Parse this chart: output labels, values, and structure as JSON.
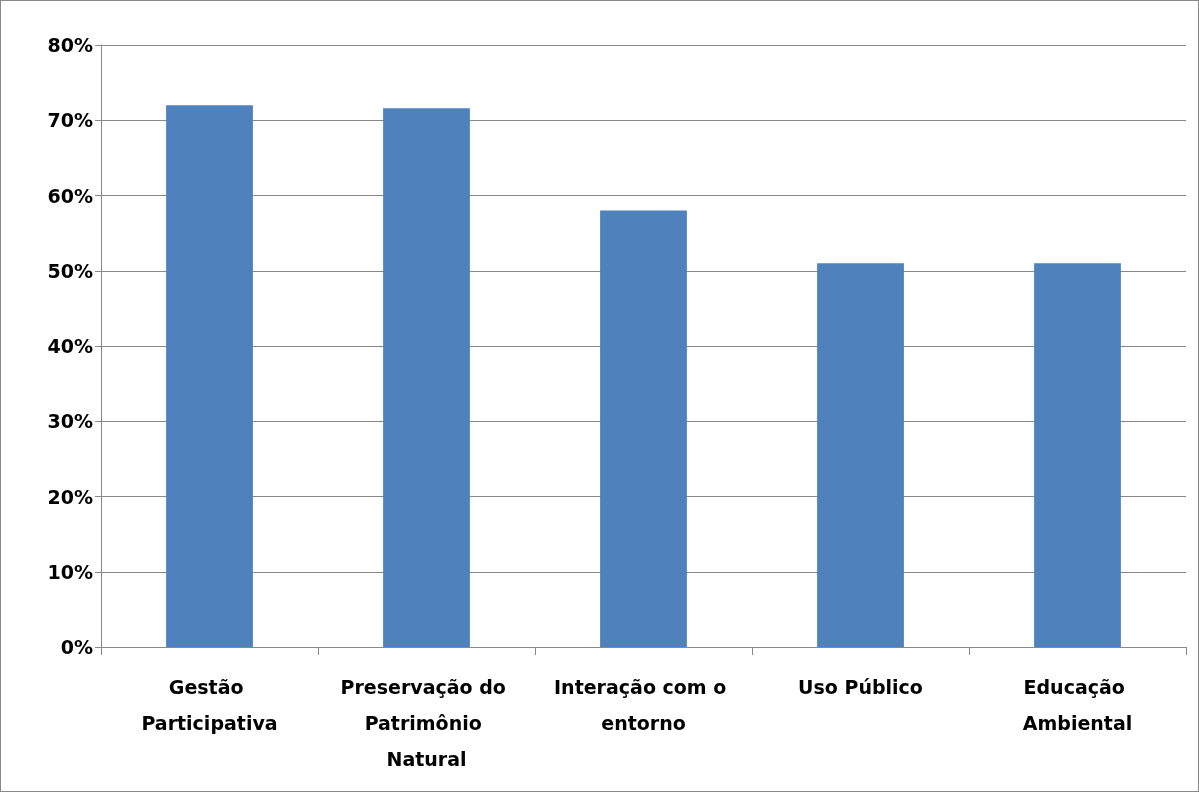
{
  "chart_data": {
    "type": "bar",
    "categories": [
      "Gestão Participativa",
      "Preservação do Patrimônio Natural",
      "Interação com o entorno",
      "Uso Público",
      "Educação Ambiental"
    ],
    "values": [
      72,
      71.6,
      58,
      51,
      51
    ],
    "color": "#4f81bd",
    "ylim": [
      0,
      80
    ],
    "yticks": [
      {
        "value": 0,
        "label": "0%"
      },
      {
        "value": 10,
        "label": "10%"
      },
      {
        "value": 20,
        "label": "20%"
      },
      {
        "value": 30,
        "label": "30%"
      },
      {
        "value": 40,
        "label": "40%"
      },
      {
        "value": 50,
        "label": "50%"
      },
      {
        "value": 60,
        "label": "60%"
      },
      {
        "value": 70,
        "label": "70%"
      },
      {
        "value": 80,
        "label": "80%"
      }
    ],
    "grid": "y"
  }
}
